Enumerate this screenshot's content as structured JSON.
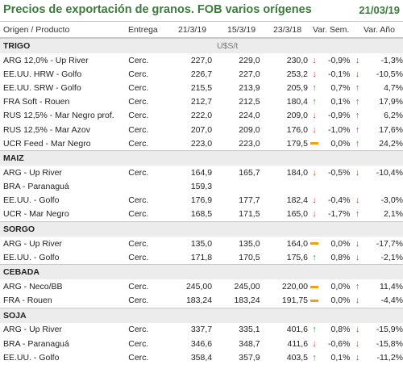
{
  "title": "Precios de exportación de granos. FOB varios orígenes",
  "date": "21/03/19",
  "headers": {
    "origen": "Origen / Producto",
    "entrega": "Entrega",
    "c1": "21/3/19",
    "c2": "15/3/19",
    "c3": "23/3/18",
    "c4": "Var. Sem.",
    "c5": "Var. Año"
  },
  "sections": [
    {
      "name": "TRIGO",
      "unit": "U$S/t",
      "rows": [
        {
          "name": "ARG 12,0% - Up River",
          "ent": "Cerc.",
          "v1": "227,0",
          "v2": "229,0",
          "v3": "230,0",
          "a1": "down",
          "s": "-0,9%",
          "a2": "down",
          "y": "-1,3%"
        },
        {
          "name": "EE.UU. HRW - Golfo",
          "ent": "Cerc.",
          "v1": "226,7",
          "v2": "227,0",
          "v3": "253,2",
          "a1": "down",
          "s": "-0,1%",
          "a2": "down",
          "y": "-10,5%"
        },
        {
          "name": "EE.UU. SRW - Golfo",
          "ent": "Cerc.",
          "v1": "215,5",
          "v2": "213,9",
          "v3": "205,9",
          "a1": "up",
          "s": "0,7%",
          "a2": "up",
          "y": "4,7%"
        },
        {
          "name": "FRA Soft - Rouen",
          "ent": "Cerc.",
          "v1": "212,7",
          "v2": "212,5",
          "v3": "180,4",
          "a1": "up",
          "s": "0,1%",
          "a2": "up",
          "y": "17,9%"
        },
        {
          "name": "RUS 12,5% - Mar Negro prof.",
          "ent": "Cerc.",
          "v1": "222,0",
          "v2": "224,0",
          "v3": "209,0",
          "a1": "down",
          "s": "-0,9%",
          "a2": "up",
          "y": "6,2%"
        },
        {
          "name": "RUS 12,5% - Mar Azov",
          "ent": "Cerc.",
          "v1": "207,0",
          "v2": "209,0",
          "v3": "176,0",
          "a1": "down",
          "s": "-1,0%",
          "a2": "up",
          "y": "17,6%"
        },
        {
          "name": "UCR Feed - Mar Negro",
          "ent": "Cerc.",
          "v1": "223,0",
          "v2": "223,0",
          "v3": "179,5",
          "a1": "eq",
          "s": "0,0%",
          "a2": "up",
          "y": "24,2%"
        }
      ]
    },
    {
      "name": "MAIZ",
      "unit": "",
      "rows": [
        {
          "name": "ARG - Up River",
          "ent": "Cerc.",
          "v1": "164,9",
          "v2": "165,7",
          "v3": "184,0",
          "a1": "down",
          "s": "-0,5%",
          "a2": "down",
          "y": "-10,4%"
        },
        {
          "name": "BRA - Paranaguá",
          "ent": "",
          "v1": "159,3",
          "v2": "",
          "v3": "",
          "a1": "",
          "s": "",
          "a2": "",
          "y": ""
        },
        {
          "name": "EE.UU. - Golfo",
          "ent": "Cerc.",
          "v1": "176,9",
          "v2": "177,7",
          "v3": "182,4",
          "a1": "down",
          "s": "-0,4%",
          "a2": "down",
          "y": "-3,0%"
        },
        {
          "name": "UCR - Mar Negro",
          "ent": "Cerc.",
          "v1": "168,5",
          "v2": "171,5",
          "v3": "165,0",
          "a1": "down",
          "s": "-1,7%",
          "a2": "up",
          "y": "2,1%"
        }
      ]
    },
    {
      "name": "SORGO",
      "unit": "",
      "rows": [
        {
          "name": "ARG - Up River",
          "ent": "Cerc.",
          "v1": "135,0",
          "v2": "135,0",
          "v3": "164,0",
          "a1": "eq",
          "s": "0,0%",
          "a2": "down",
          "y": "-17,7%"
        },
        {
          "name": "EE.UU. - Golfo",
          "ent": "Cerc.",
          "v1": "171,8",
          "v2": "170,5",
          "v3": "175,6",
          "a1": "up",
          "s": "0,8%",
          "a2": "down",
          "y": "-2,1%"
        }
      ]
    },
    {
      "name": "CEBADA",
      "unit": "",
      "rows": [
        {
          "name": "ARG - Neco/BB",
          "ent": "Cerc.",
          "v1": "245,00",
          "v2": "245,00",
          "v3": "220,00",
          "a1": "eq",
          "s": "0,0%",
          "a2": "up",
          "y": "11,4%"
        },
        {
          "name": "FRA - Rouen",
          "ent": "Cerc.",
          "v1": "183,24",
          "v2": "183,24",
          "v3": "191,75",
          "a1": "eq",
          "s": "0,0%",
          "a2": "down",
          "y": "-4,4%"
        }
      ]
    },
    {
      "name": "SOJA",
      "unit": "",
      "rows": [
        {
          "name": "ARG - Up River",
          "ent": "Cerc.",
          "v1": "337,7",
          "v2": "335,1",
          "v3": "401,6",
          "a1": "up",
          "s": "0,8%",
          "a2": "down",
          "y": "-15,9%"
        },
        {
          "name": "BRA - Paranaguá",
          "ent": "Cerc.",
          "v1": "346,6",
          "v2": "348,7",
          "v3": "411,6",
          "a1": "down",
          "s": "-0,6%",
          "a2": "down",
          "y": "-15,8%"
        },
        {
          "name": "EE.UU. - Golfo",
          "ent": "Cerc.",
          "v1": "358,4",
          "v2": "357,9",
          "v3": "403,5",
          "a1": "up",
          "s": "0,1%",
          "a2": "down",
          "y": "-11,2%"
        }
      ]
    }
  ],
  "colors": {
    "title": "#3d7a3d",
    "up": "#3a9a3a",
    "down": "#d83a2a",
    "neutral": "#f0a018",
    "section_bg": "#ececec"
  }
}
